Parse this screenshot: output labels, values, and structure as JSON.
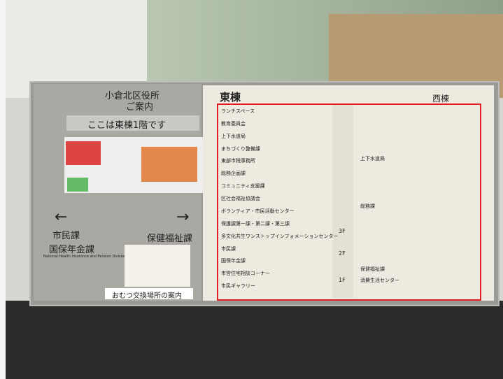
{
  "left_panel": {
    "title": "小倉北区役所",
    "subtitle": "ご案内",
    "location": "ここは東棟1階です",
    "left_direction": [
      "市民課",
      "国保年金課"
    ],
    "left_direction_en": "National Health Insurance and Pension Division",
    "right_direction": "保健福祉課",
    "note": "おむつ交換場所の案内"
  },
  "right_panel": {
    "east": "東棟",
    "west": "西棟",
    "east_entries": [
      "ランチスペース",
      "教育委員会",
      "上下水道局",
      "まちづくり整備課",
      "東部市税事務所",
      "総務企画課",
      "コミュニティ支援課",
      "区社会福祉協議会",
      "ボランティア・市民活動センター",
      "保護課第一課・第二課・第三課",
      "多文化共生ワンストップインフォメーションセンター",
      "市民課",
      "国保年金課",
      "市営住宅相談コーナー",
      "市民ギャラリー"
    ],
    "floors": [
      "3F",
      "2F",
      "1F"
    ],
    "west_entries": [
      "上下水道局",
      "総務課",
      "保健福祉課",
      "消費生活センター"
    ]
  }
}
